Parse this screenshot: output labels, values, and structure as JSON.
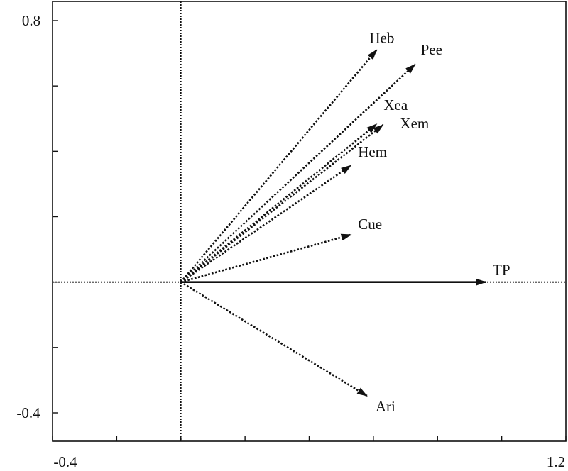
{
  "chart_data": {
    "type": "biplot",
    "title": "",
    "xlabel": "",
    "ylabel": "",
    "xlim": [
      -0.4,
      1.2
    ],
    "ylim": [
      -0.4,
      0.8
    ],
    "tick_labels": {
      "x": [
        "-0.4",
        "1.2"
      ],
      "y": [
        "0.8",
        "-0.4"
      ]
    },
    "vectors": [
      {
        "name": "Heb",
        "x": 0.61,
        "y": 0.71,
        "style": "dotted"
      },
      {
        "name": "Pee",
        "x": 0.73,
        "y": 0.666,
        "style": "dotted"
      },
      {
        "name": "Xea",
        "x": 0.61,
        "y": 0.483,
        "style": "dotted"
      },
      {
        "name": "Xem",
        "x": 0.63,
        "y": 0.481,
        "style": "dotted"
      },
      {
        "name": "Hem",
        "x": 0.53,
        "y": 0.357,
        "style": "dotted"
      },
      {
        "name": "Cue",
        "x": 0.53,
        "y": 0.145,
        "style": "dotted"
      },
      {
        "name": "TP",
        "x": 0.95,
        "y": 0.0,
        "style": "solid"
      },
      {
        "name": "Ari",
        "x": 0.58,
        "y": -0.348,
        "style": "dotted"
      }
    ]
  }
}
